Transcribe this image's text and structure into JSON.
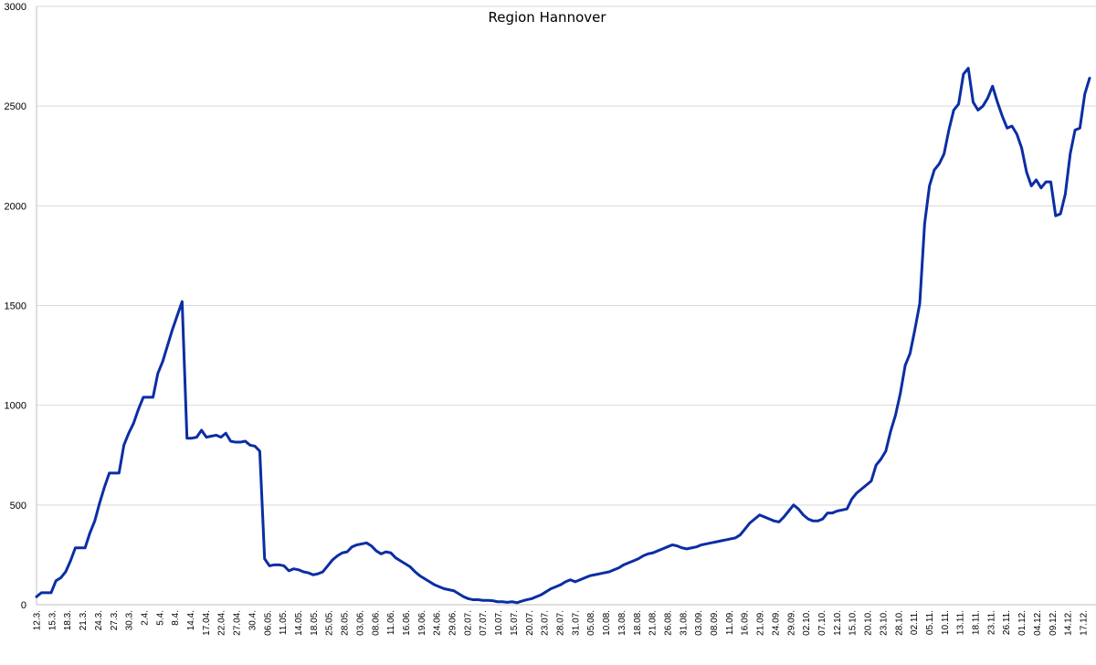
{
  "chart_data": {
    "type": "line",
    "title": "Region Hannover",
    "xlabel": "",
    "ylabel": "",
    "ylim": [
      0,
      3000
    ],
    "yticks": [
      0,
      500,
      1000,
      1500,
      2000,
      2500,
      3000
    ],
    "grid": true,
    "legend": "none",
    "line_color": "#0a2ea3",
    "xticks": [
      "12.3.",
      "15.3.",
      "18.3.",
      "21.3.",
      "24.3.",
      "27.3.",
      "30.3.",
      "2.4.",
      "5.4.",
      "8.4.",
      "14.4.",
      "17.04.",
      "22.04.",
      "27.04.",
      "30.4.",
      "06.05.",
      "11.05.",
      "14.05.",
      "18.05.",
      "25.05.",
      "28.05.",
      "03.06.",
      "08.06.",
      "11.06.",
      "16.06.",
      "19.06.",
      "24.06.",
      "29.06.",
      "02.07.",
      "07.07.",
      "10.07.",
      "15.07.",
      "20.07.",
      "23.07.",
      "28.07.",
      "31.07.",
      "05.08.",
      "10.08.",
      "13.08.",
      "18.08.",
      "21.08.",
      "26.08.",
      "31.08.",
      "03.09.",
      "08.09.",
      "11.09.",
      "16.09.",
      "21.09.",
      "24.09.",
      "29.09.",
      "02.10.",
      "07.10.",
      "12.10.",
      "15.10.",
      "20.10.",
      "23.10.",
      "28.10.",
      "02.11.",
      "05.11.",
      "10.11.",
      "13.11.",
      "18.11.",
      "23.11.",
      "26.11.",
      "01.12.",
      "04.12.",
      "09.12.",
      "14.12.",
      "17.12."
    ],
    "series": [
      {
        "values": [
          40,
          60,
          60,
          60,
          120,
          135,
          165,
          220,
          285,
          285,
          285,
          360,
          420,
          510,
          590,
          660,
          660,
          660,
          800,
          860,
          910,
          980,
          1040,
          1040,
          1040,
          1160,
          1220,
          1300,
          1380,
          1450,
          1520,
          835,
          835,
          840,
          875,
          840,
          845,
          850,
          840,
          860,
          820,
          815,
          815,
          820,
          800,
          795,
          770,
          230,
          195,
          200,
          200,
          195,
          170,
          180,
          175,
          165,
          160,
          150,
          155,
          165,
          195,
          225,
          245,
          260,
          265,
          290,
          300,
          305,
          310,
          295,
          270,
          255,
          265,
          260,
          235,
          220,
          205,
          190,
          165,
          145,
          130,
          115,
          100,
          90,
          80,
          75,
          70,
          55,
          40,
          30,
          25,
          25,
          22,
          22,
          20,
          15,
          15,
          12,
          15,
          10,
          18,
          25,
          30,
          40,
          50,
          65,
          80,
          90,
          100,
          115,
          125,
          115,
          125,
          135,
          145,
          150,
          155,
          160,
          165,
          175,
          185,
          200,
          210,
          220,
          230,
          245,
          255,
          260,
          270,
          280,
          290,
          300,
          295,
          285,
          280,
          285,
          290,
          300,
          305,
          310,
          315,
          320,
          325,
          330,
          335,
          350,
          380,
          410,
          430,
          450,
          440,
          430,
          420,
          415,
          440,
          470,
          500,
          480,
          450,
          430,
          420,
          420,
          430,
          460,
          460,
          470,
          475,
          480,
          530,
          560,
          580,
          600,
          620,
          700,
          730,
          770,
          870,
          950,
          1060,
          1200,
          1260,
          1380,
          1510,
          1910,
          2100,
          2180,
          2210,
          2260,
          2380,
          2480,
          2510,
          2660,
          2690,
          2520,
          2480,
          2500,
          2540,
          2600,
          2520,
          2450,
          2390,
          2400,
          2360,
          2290,
          2170,
          2100,
          2130,
          2090,
          2120,
          2120,
          1950,
          1960,
          2060,
          2260,
          2380,
          2390,
          2560,
          2640
        ]
      }
    ]
  }
}
